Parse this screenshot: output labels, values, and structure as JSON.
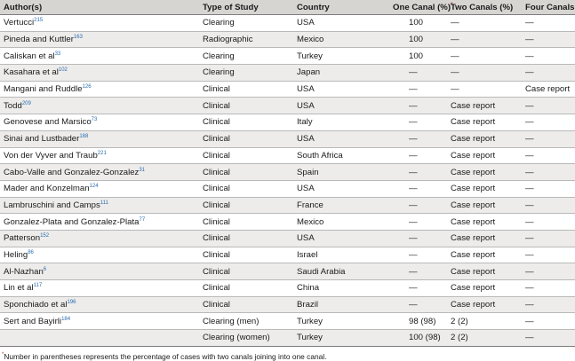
{
  "header": {
    "author": "Author(s)",
    "type": "Type of Study",
    "country": "Country",
    "one_canal": "One Canal (%)",
    "one_canal_mark": "*",
    "two_canals": "Two Canals (%)",
    "four_canals": "Four Canals (%)"
  },
  "rows": [
    {
      "author": "Vertucci",
      "ref": "215",
      "type": "Clearing",
      "country": "USA",
      "one": "100",
      "two": "—",
      "four": "—"
    },
    {
      "author": "Pineda and Kuttler",
      "ref": "163",
      "type": "Radiographic",
      "country": "Mexico",
      "one": "100",
      "two": "—",
      "four": "—"
    },
    {
      "author": "Caliskan et al",
      "ref": "33",
      "type": "Clearing",
      "country": "Turkey",
      "one": "100",
      "two": "—",
      "four": "—"
    },
    {
      "author": "Kasahara et al",
      "ref": "102",
      "type": "Clearing",
      "country": "Japan",
      "one": "—",
      "two": "—",
      "four": "—"
    },
    {
      "author": "Mangani and Ruddle",
      "ref": "126",
      "type": "Clinical",
      "country": "USA",
      "one": "—",
      "two": "—",
      "four": "Case report"
    },
    {
      "author": "Todd",
      "ref": "209",
      "type": "Clinical",
      "country": "USA",
      "one": "—",
      "two": "Case report",
      "four": "—"
    },
    {
      "author": "Genovese and Marsico",
      "ref": "73",
      "type": "Clinical",
      "country": "Italy",
      "one": "—",
      "two": "Case report",
      "four": "—"
    },
    {
      "author": "Sinai and Lustbader",
      "ref": "188",
      "type": "Clinical",
      "country": "USA",
      "one": "—",
      "two": "Case report",
      "four": "—"
    },
    {
      "author": "Von der Vyver and Traub",
      "ref": "221",
      "type": "Clinical",
      "country": "South Africa",
      "one": "—",
      "two": "Case report",
      "four": "—"
    },
    {
      "author": "Cabo-Valle and Gonzalez-Gonzalez",
      "ref": "31",
      "type": "Clinical",
      "country": "Spain",
      "one": "—",
      "two": "Case report",
      "four": "—"
    },
    {
      "author": "Mader and Konzelman",
      "ref": "124",
      "type": "Clinical",
      "country": "USA",
      "one": "—",
      "two": "Case report",
      "four": "—"
    },
    {
      "author": "Lambruschini and Camps",
      "ref": "111",
      "type": "Clinical",
      "country": "France",
      "one": "—",
      "two": "Case report",
      "four": "—"
    },
    {
      "author": "Gonzalez-Plata and Gonzalez-Plata",
      "ref": "77",
      "type": "Clinical",
      "country": "Mexico",
      "one": "—",
      "two": "Case report",
      "four": "—"
    },
    {
      "author": "Patterson",
      "ref": "152",
      "type": "Clinical",
      "country": "USA",
      "one": "—",
      "two": "Case report",
      "four": "—"
    },
    {
      "author": "Heling",
      "ref": "86",
      "type": "Clinical",
      "country": "Israel",
      "one": "—",
      "two": "Case report",
      "four": "—"
    },
    {
      "author": "Al-Nazhan",
      "ref": "6",
      "type": "Clinical",
      "country": "Saudi Arabia",
      "one": "—",
      "two": "Case report",
      "four": "—"
    },
    {
      "author": "Lin et al",
      "ref": "117",
      "type": "Clinical",
      "country": "China",
      "one": "—",
      "two": "Case report",
      "four": "—"
    },
    {
      "author": "Sponchiado et al",
      "ref": "196",
      "type": "Clinical",
      "country": "Brazil",
      "one": "—",
      "two": "Case report",
      "four": "—"
    },
    {
      "author": "Sert and Bayirli",
      "ref": "184",
      "type": "Clearing (men)",
      "country": "Turkey",
      "one": "98 (98)",
      "two": "2 (2)",
      "four": "—"
    },
    {
      "author": "",
      "ref": "",
      "type": "Clearing (women)",
      "country": "Turkey",
      "one": "100 (98)",
      "two": "2 (2)",
      "four": "—"
    }
  ],
  "footnote": {
    "mark": "*",
    "text": "Number in parentheses represents the percentage of cases with two canals joining into one canal."
  }
}
